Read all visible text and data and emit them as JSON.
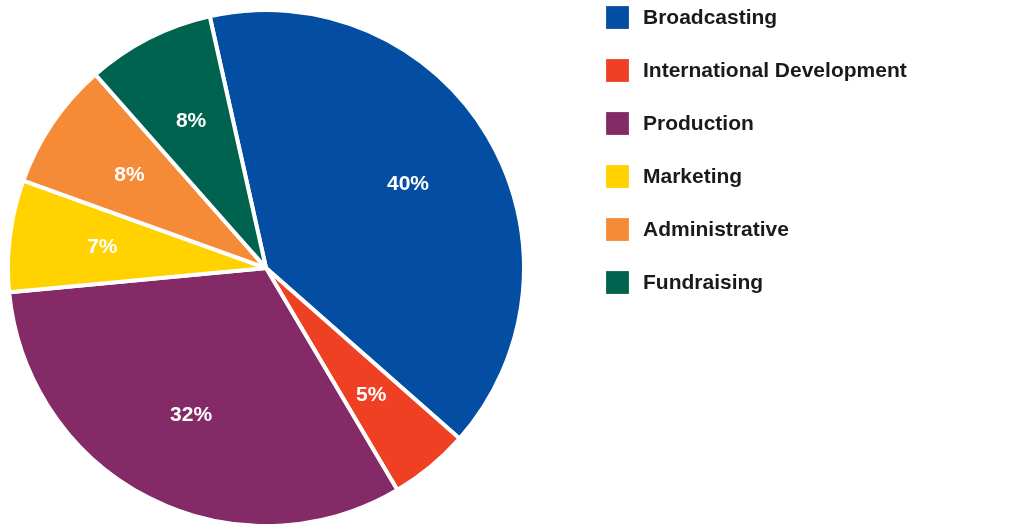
{
  "chart_data": {
    "type": "pie",
    "categories": [
      "Broadcasting",
      "International Development",
      "Production",
      "Marketing",
      "Administrative",
      "Fundraising"
    ],
    "values": [
      40,
      5,
      32,
      7,
      8,
      8
    ],
    "colors": [
      "#034ea2",
      "#ef4023",
      "#832a67",
      "#ffd200",
      "#f68b37",
      "#00634f"
    ],
    "value_labels": [
      "40%",
      "5%",
      "32%",
      "7%",
      "8%",
      "8%"
    ],
    "legend": "right"
  }
}
